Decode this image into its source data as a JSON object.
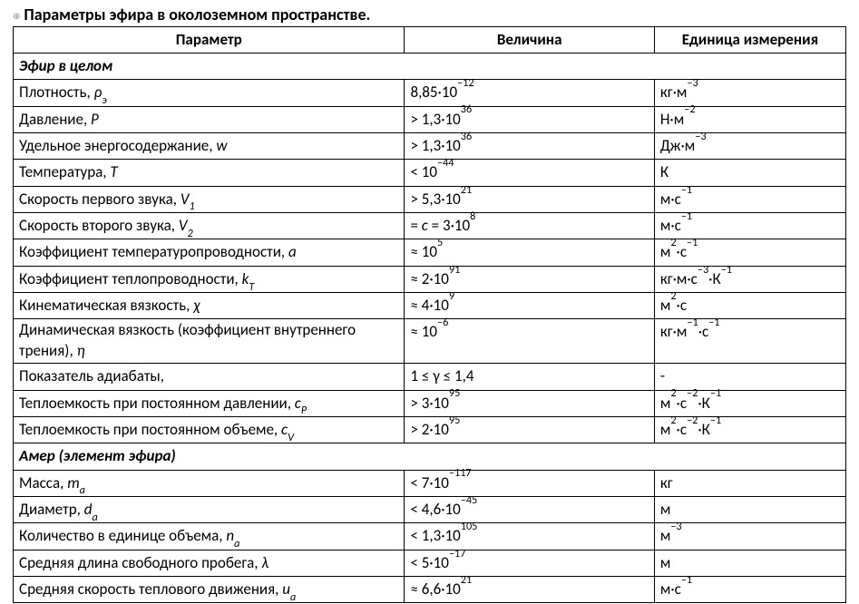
{
  "title_text": "Параметры эфира в околоземном пространстве.",
  "anchor_glyph": "⊕",
  "headers": {
    "param": "Параметр",
    "value": "Величина",
    "unit": "Единица измерения"
  },
  "section1": "Эфир в целом",
  "section2": "Амер (элемент эфира)",
  "rows1": [
    {
      "p": "Плотность, <span class='ital'>ρ<sub>э</sub></span>",
      "v": "8,85·10<sup>–12</sup>",
      "u": "кг·м<sup>–3</sup>"
    },
    {
      "p": "Давление, <span class='ital'>P</span>",
      "v": "> 1,3·10<sup>36</sup>",
      "u": "Н·м<sup>–2</sup>"
    },
    {
      "p": "Удельное энергосодержание, <span class='ital'>w</span>",
      "v": "> 1,3·10<sup>36</sup>",
      "u": "Дж·м<sup>–3</sup>"
    },
    {
      "p": "Температура, <span class='ital'>T</span>",
      "v": "< 10<sup>–44</sup>",
      "u": "К"
    },
    {
      "p": "Скорость первого звука, <span class='ital'>V<sub>1</sub></span>",
      "v": "> 5,3·10<sup>21</sup>",
      "u": "м·с<sup>–1</sup>"
    },
    {
      "p": "Скорость второго звука, <span class='ital'>V<sub>2</sub></span>",
      "v": "= <span class='ital'>c</span> = 3·10<sup>8</sup>",
      "u": "м·с<sup>–1</sup>"
    },
    {
      "p": "Коэффициент температуропроводности, <span class='ital'>a</span>",
      "v": "≈ 10<sup>5</sup>",
      "u": "м<sup>2</sup>·с<sup>–1</sup>"
    },
    {
      "p": "Коэффициент теплопроводности, <span class='ital'>k<sub>T</sub></span>",
      "v": "≈ 2·10<sup>91</sup>",
      "u": "кг·м·с<sup>–3</sup>·К<sup>–1</sup>"
    },
    {
      "p": "Кинематическая вязкость, <span class='ital'>χ</span>",
      "v": "≈ 4·10<sup>9</sup>",
      "u": "м<sup>2</sup>·с"
    },
    {
      "p": "Динамическая вязкость (коэффициент внутреннего трения), <span class='ital'>η</span>",
      "v": "≈ 10<sup>–6</sup>",
      "u": "кг·м<sup>–1</sup>·с<sup>–1</sup>",
      "twoline": true
    },
    {
      "p": "Показатель адиабаты,",
      "v": "1 ≤ γ ≤ 1,4",
      "u": "-"
    },
    {
      "p": "Теплоемкость при постоянном давлении, <span class='ital'>c<sub>P</sub></span>",
      "v": "> 3·10<sup>95</sup>",
      "u": "м<sup>2</sup>·с<sup>–2</sup>·К<sup>–1</sup>"
    },
    {
      "p": "Теплоемкость при постоянном объеме, <span class='ital'>c<sub>V</sub></span>",
      "v": "> 2·10<sup>95</sup>",
      "u": "м<sup>2</sup>·с<sup>–2</sup>·К<sup>–1</sup>"
    }
  ],
  "rows2": [
    {
      "p": "Масса, <span class='ital'>m<sub>a</sub></span>",
      "v": "< 7·10<sup>–117</sup>",
      "u": "кг"
    },
    {
      "p": "Диаметр, <span class='ital'>d<sub>a</sub></span>",
      "v": "< 4,6·10<sup>–45</sup>",
      "u": "м"
    },
    {
      "p": "Количество в единице объема, <span class='ital'>n<sub>a</sub></span>",
      "v": "< 1,3·10<sup>105</sup>",
      "u": "м<sup>–3</sup>"
    },
    {
      "p": "Средняя длина свободного пробега, <span class='ital'>λ</span>",
      "v": "< 5·10<sup>–17</sup>",
      "u": "м"
    },
    {
      "p": "Средняя скорость теплового движения, <span class='ital'>u<sub>a</sub></span>",
      "v": "≈ 6,6·10<sup>21</sup>",
      "u": "м·с<sup>–1</sup>"
    }
  ],
  "style": {
    "font_family": "Calibri",
    "title_fontsize": 18,
    "cell_fontsize": 17,
    "border_color": "#000000",
    "text_color": "#000000",
    "background": "#ffffff",
    "col_widths_pct": [
      47,
      30,
      23
    ]
  }
}
